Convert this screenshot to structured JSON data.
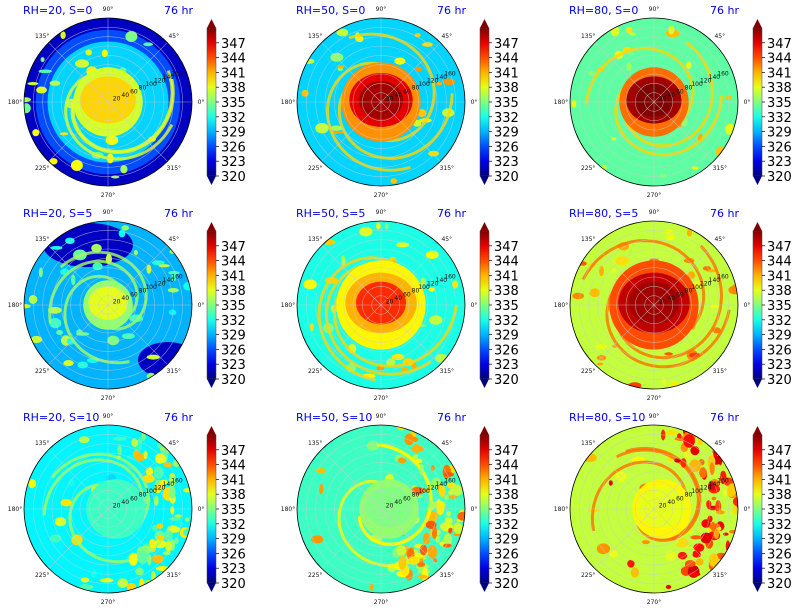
{
  "chart_data": {
    "type": "heatmap",
    "projection": "polar",
    "time_label": "76 hr",
    "colormap": "jet",
    "color_range": [
      320,
      350
    ],
    "colorbar_ticks": [
      "347",
      "344",
      "341",
      "338",
      "335",
      "332",
      "329",
      "326",
      "323",
      "320"
    ],
    "angle_labels": [
      "0°",
      "45°",
      "90°",
      "135°",
      "180°",
      "225°",
      "270°",
      "315°"
    ],
    "radial_ticks": [
      "20",
      "40",
      "60",
      "80",
      "100",
      "120",
      "140",
      "160"
    ],
    "radial_max": 180,
    "grid": true,
    "panels": [
      {
        "title": "RH=20, S=0",
        "rh": 20,
        "s": 0,
        "background_value": 322,
        "core_value": 340,
        "core_radius": 35,
        "peak_value": 343,
        "eyewall_radius": 25,
        "band_value": 335
      },
      {
        "title": "RH=50, S=0",
        "rh": 50,
        "s": 0,
        "background_value": 330,
        "core_value": 347,
        "core_radius": 40,
        "peak_value": 349,
        "eyewall_radius": 30,
        "band_value": 337
      },
      {
        "title": "RH=80, S=0",
        "rh": 80,
        "s": 0,
        "background_value": 334,
        "core_value": 349,
        "core_radius": 35,
        "peak_value": 350,
        "eyewall_radius": 30,
        "band_value": 337
      },
      {
        "title": "RH=20, S=5",
        "rh": 20,
        "s": 5,
        "background_value": 329,
        "core_value": 338,
        "core_radius": 25,
        "peak_value": 341,
        "eyewall_radius": 20,
        "band_value": 333
      },
      {
        "title": "RH=50, S=5",
        "rh": 50,
        "s": 5,
        "background_value": 332,
        "core_value": 341,
        "core_radius": 45,
        "peak_value": 345,
        "eyewall_radius": 35,
        "band_value": 337
      },
      {
        "title": "RH=80, S=5",
        "rh": 80,
        "s": 5,
        "background_value": 337,
        "core_value": 348,
        "core_radius": 45,
        "peak_value": 349,
        "eyewall_radius": 40,
        "band_value": 340
      },
      {
        "title": "RH=20, S=10",
        "rh": 20,
        "s": 10,
        "background_value": 331,
        "core_value": 333,
        "core_radius": 30,
        "peak_value": 334,
        "eyewall_radius": 20,
        "band_value": 333
      },
      {
        "title": "RH=50, S=10",
        "rh": 50,
        "s": 10,
        "background_value": 333,
        "core_value": 335,
        "core_radius": 30,
        "peak_value": 336,
        "eyewall_radius": 20,
        "band_value": 336
      },
      {
        "title": "RH=80, S=10",
        "rh": 80,
        "s": 10,
        "background_value": 337,
        "core_value": 338,
        "core_radius": 30,
        "peak_value": 339,
        "eyewall_radius": 20,
        "band_value": 340
      }
    ]
  }
}
